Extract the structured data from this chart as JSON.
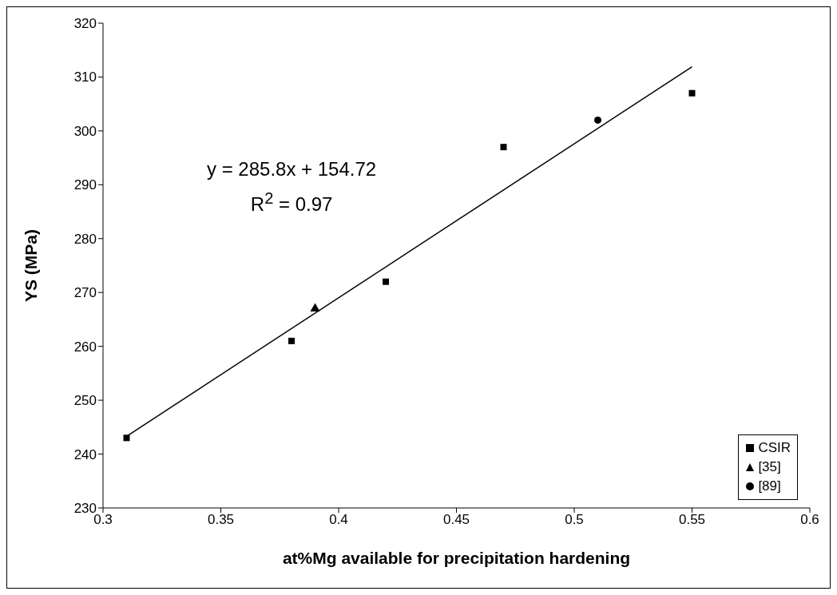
{
  "chart_data": {
    "type": "scatter",
    "xlabel": "at%Mg available for precipitation hardening",
    "ylabel": "YS (MPa)",
    "xlim": [
      0.3,
      0.6
    ],
    "xticks": [
      0.3,
      0.35,
      0.4,
      0.45,
      0.5,
      0.55,
      0.6
    ],
    "ylim": [
      230,
      320
    ],
    "yticks": [
      230,
      240,
      250,
      260,
      270,
      280,
      290,
      300,
      310,
      320
    ],
    "grid": false,
    "legend": "bottom right",
    "annotations": [
      "y = 285.8x + 154.72",
      "R$^{2}$ = 0.97"
    ],
    "series": [
      {
        "name": "CSIR",
        "marker": "square",
        "color": "#000000",
        "x": [
          0.31,
          0.38,
          0.42,
          0.47,
          0.55
        ],
        "values": [
          243,
          261,
          272,
          297,
          307
        ]
      },
      {
        "name": "[35]",
        "marker": "triangle",
        "color": "#000000",
        "x": [
          0.39
        ],
        "values": [
          267
        ]
      },
      {
        "name": "[89]",
        "marker": "circle",
        "color": "#000000",
        "x": [
          0.51
        ],
        "values": [
          302
        ]
      },
      {
        "type": "line",
        "marker": "none",
        "color": "#000000",
        "x": [
          0.31,
          0.55
        ],
        "values": [
          243.3,
          311.9
        ]
      }
    ]
  }
}
